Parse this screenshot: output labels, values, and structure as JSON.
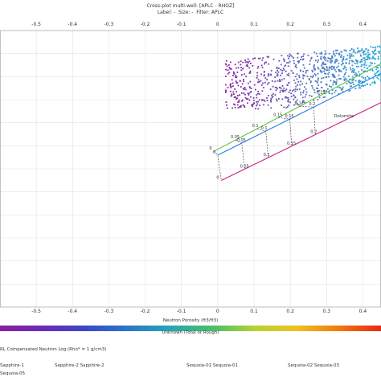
{
  "chart_data": {
    "type": "scatter",
    "title": "Cross-plot multi-well: [APLC - RHOZ]",
    "subtitle_parts": [
      "Label:",
      "-",
      "Size:",
      "-",
      "Filter: APLC"
    ],
    "xlabel": "Neutron Porosity (ft3/ft3)",
    "colorbar_label": "Unknown (Total or Rough)",
    "xlim": [
      -0.6,
      0.45
    ],
    "x_ticks": [
      "-0.5",
      "-0.4",
      "-0.3",
      "-0.2",
      "-0.1",
      "0",
      "0.1",
      "0.2",
      "0.3",
      "0.4"
    ],
    "grid": true,
    "colors": {
      "green_line": "#58c43a",
      "blue_line": "#2a7de1",
      "magenta_line": "#d0208a",
      "scatter_low": "#8a1fa0",
      "scatter_high": "#2ab0d8"
    },
    "lines": [
      {
        "name": "",
        "color": "green",
        "points": [
          [
            -0.01,
            0.0
          ],
          [
            0.45,
            0.45
          ]
        ],
        "labels": [
          "0",
          "0.05",
          "0.1",
          "0.15",
          "0.2",
          "0.25"
        ]
      },
      {
        "name": "",
        "color": "blue",
        "points": [
          [
            0.0,
            -0.02
          ],
          [
            0.45,
            0.4
          ]
        ],
        "labels": [
          "0",
          "0.05",
          "0.1",
          "0.15",
          "0.2"
        ]
      },
      {
        "name": "",
        "color": "magenta",
        "points": [
          [
            0.01,
            -0.15
          ],
          [
            0.45,
            0.25
          ]
        ],
        "labels": [
          "0",
          "0.05",
          "0.1",
          "0.15",
          "0.2"
        ]
      }
    ],
    "annotations": [
      "Dolomite"
    ],
    "scatter_region": {
      "x_range": [
        0.02,
        0.45
      ],
      "y_range": [
        0.22,
        0.6
      ]
    }
  },
  "footer": {
    "note": "RL Compensated Neutron Log (Rho* = 1 g/cm3)",
    "wells": [
      "Sapphire-1",
      "Sapphire-2  Sapphire-2",
      "Sequoia-01  Sequoia-01",
      "Sequoia-02  Sequoia-03"
    ],
    "well_extra": "Sequoia-05"
  }
}
